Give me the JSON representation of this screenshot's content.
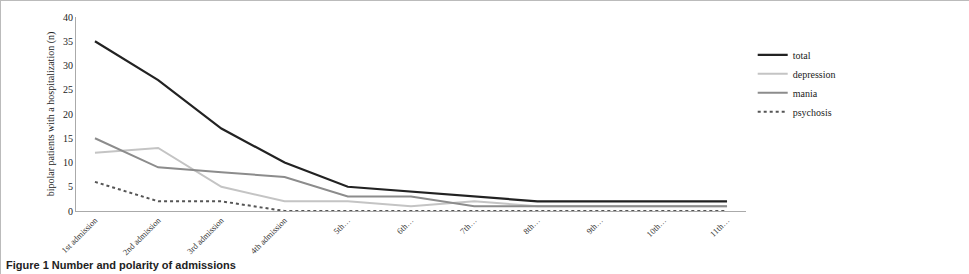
{
  "chart_data": {
    "type": "line",
    "title": "Figure 1 Number and polarity of admissions",
    "y_label": "bipolar patients with a hospitalization (n)",
    "categories": [
      "1st admission",
      "2nd admission",
      "3rd admission",
      "4th admission",
      "5th…",
      "6th…",
      "7th…",
      "8th…",
      "9th…",
      "10th…",
      "11th…"
    ],
    "series": [
      {
        "name": "total",
        "color": "#222222",
        "line_style": "solid",
        "values": [
          35,
          27,
          17,
          10,
          5,
          4,
          3,
          2,
          2,
          2,
          2
        ]
      },
      {
        "name": "depression",
        "color": "#c4c4c4",
        "line_style": "solid",
        "values": [
          12,
          13,
          5,
          2,
          2,
          1,
          2,
          1,
          1,
          1,
          1
        ]
      },
      {
        "name": "mania",
        "color": "#8c8c8c",
        "line_style": "solid",
        "values": [
          15,
          9,
          8,
          7,
          3,
          3,
          1,
          1,
          1,
          1,
          1
        ]
      },
      {
        "name": "psychosis",
        "color": "#555555",
        "line_style": "dotted",
        "values": [
          6,
          2,
          2,
          0,
          0,
          0,
          0,
          0,
          0,
          0,
          0
        ]
      }
    ],
    "ylim": [
      0,
      40
    ],
    "yticks": [
      0,
      5,
      10,
      15,
      20,
      25,
      30,
      35,
      40
    ],
    "grid": false,
    "legend": "right"
  }
}
